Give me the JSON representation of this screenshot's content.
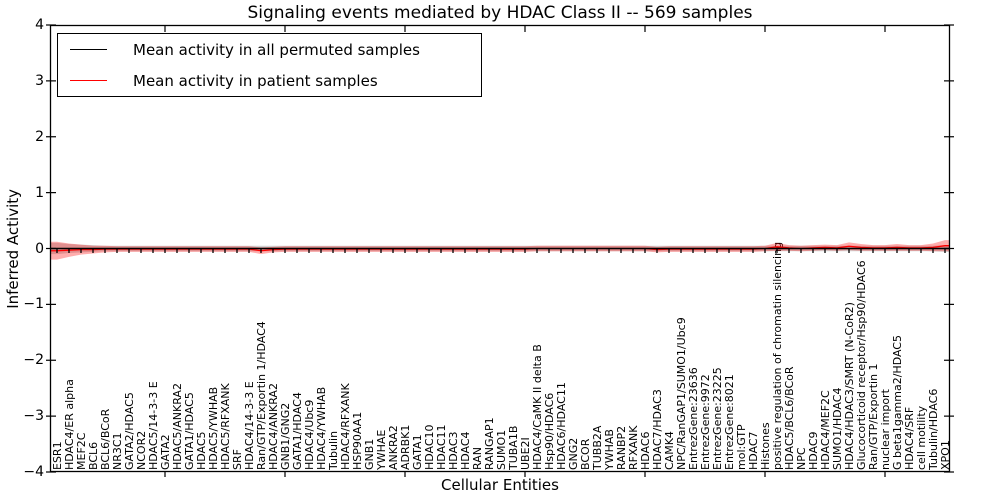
{
  "chart_data": {
    "type": "line",
    "title": "Signaling events mediated by HDAC Class II -- 569 samples",
    "xlabel": "Cellular Entities",
    "ylabel": "Inferred Activity",
    "ylim": [
      -4,
      4
    ],
    "yticks": [
      4,
      3,
      2,
      1,
      0,
      -1,
      -2,
      -3,
      -4
    ],
    "ytick_labels": [
      "4",
      "3",
      "2",
      "1",
      "0",
      "−1",
      "−2",
      "−3",
      "−4"
    ],
    "grid": false,
    "legend_position": "upper left",
    "colors": {
      "permuted": "#000000",
      "patient": "#ff0000",
      "patient_band": "#ff0000",
      "permuted_band": "#000000",
      "frame": "#000000",
      "background": "#ffffff"
    },
    "categories": [
      "ESR1",
      "HDAC4/ER alpha",
      "MEF2C",
      "BCL6",
      "BCL6/BCoR",
      "NR3C1",
      "GATA2/HDAC5",
      "NCOR2",
      "HDAC5/14-3-3 E",
      "GATA2",
      "HDAC5/ANKRA2",
      "GATA1/HDAC5",
      "HDAC5",
      "HDAC5/YWHAB",
      "HDAC5/RFXANK",
      "SRF",
      "HDAC4/14-3-3 E",
      "Ran/GTP/Exportin 1/HDAC4",
      "HDAC4/ANKRA2",
      "GNB1/GNG2",
      "GATA1/HDAC4",
      "HDAC4/Ubc9",
      "HDAC4/YWHAB",
      "Tubulin",
      "HDAC4/RFXANK",
      "HSP90AA1",
      "GNB1",
      "YWHAE",
      "ANKRA2",
      "ADRBK1",
      "GATA1",
      "HDAC10",
      "HDAC11",
      "HDAC3",
      "HDAC4",
      "RAN",
      "RANGAP1",
      "SUMO1",
      "TUBA1B",
      "UBE2I",
      "HDAC4/CaMK II delta B",
      "Hsp90/HDAC6",
      "HDAC6/HDAC11",
      "GNG2",
      "BCOR",
      "TUBB2A",
      "YWHAB",
      "RANBP2",
      "RFXANK",
      "HDAC6",
      "HDAC7/HDAC3",
      "CAMK4",
      "NPC/RanGAP1/SUMO1/Ubc9",
      "EntrezGene:23636",
      "EntrezGene:9972",
      "EntrezGene:23225",
      "EntrezGene:8021",
      "mol:GTP",
      "HDAC7",
      "Histones",
      "positive regulation of chromatin silencing",
      "HDAC5/BCL6/BCoR",
      "NPC",
      "HDAC9",
      "HDAC4/MEF2C",
      "SUMO1/HDAC4",
      "HDAC4/HDAC3/SMRT (N-CoR2)",
      "Glucocorticoid receptor/Hsp90/HDAC6",
      "Ran/GTP/Exportin 1",
      "nuclear import",
      "G beta1gamma2/HDAC5",
      "HDAC4/SRF",
      "cell motility",
      "Tubulin/HDAC6",
      "XPO1"
    ],
    "series": [
      {
        "name": "Mean activity in all permuted samples",
        "color": "#000000",
        "marker": "|",
        "values": [
          0,
          0,
          0,
          0,
          0,
          0,
          0,
          0,
          0,
          0,
          0,
          0,
          0,
          0,
          0,
          0,
          0,
          0,
          0,
          0,
          0,
          0,
          0,
          0,
          0,
          0,
          0,
          0,
          0,
          0,
          0,
          0,
          0,
          0,
          0,
          0,
          0,
          0,
          0,
          0,
          0,
          0,
          0,
          0,
          0,
          0,
          0,
          0,
          0,
          0,
          0,
          0,
          0,
          0,
          0,
          0,
          0,
          0,
          0,
          0,
          0,
          0,
          0,
          0,
          0,
          0,
          0,
          0,
          0,
          0,
          0,
          0,
          0,
          0,
          0
        ],
        "std": [
          0.1,
          0.08,
          0.07,
          0.06,
          0.05,
          0.05,
          0.05,
          0.05,
          0.05,
          0.05,
          0.05,
          0.05,
          0.05,
          0.05,
          0.05,
          0.05,
          0.05,
          0.05,
          0.05,
          0.05,
          0.05,
          0.05,
          0.05,
          0.05,
          0.05,
          0.05,
          0.05,
          0.05,
          0.05,
          0.05,
          0.05,
          0.05,
          0.05,
          0.05,
          0.05,
          0.05,
          0.05,
          0.05,
          0.05,
          0.05,
          0.05,
          0.05,
          0.05,
          0.05,
          0.05,
          0.05,
          0.05,
          0.05,
          0.05,
          0.05,
          0.05,
          0.05,
          0.05,
          0.05,
          0.05,
          0.05,
          0.05,
          0.05,
          0.05,
          0.05,
          0.05,
          0.05,
          0.05,
          0.05,
          0.05,
          0.05,
          0.05,
          0.05,
          0.05,
          0.05,
          0.05,
          0.05,
          0.05,
          0.05,
          0.06
        ]
      },
      {
        "name": "Mean activity in patient samples",
        "color": "#ff0000",
        "marker": "none",
        "values": [
          -0.04,
          -0.03,
          -0.02,
          -0.02,
          -0.01,
          -0.01,
          -0.01,
          -0.01,
          -0.01,
          -0.01,
          -0.01,
          -0.01,
          -0.01,
          -0.01,
          -0.01,
          -0.01,
          -0.01,
          -0.04,
          -0.02,
          -0.01,
          -0.01,
          -0.01,
          -0.01,
          -0.01,
          -0.01,
          -0.01,
          -0.01,
          -0.01,
          -0.01,
          -0.01,
          -0.01,
          -0.01,
          -0.01,
          -0.01,
          -0.01,
          -0.01,
          -0.01,
          -0.01,
          -0.01,
          -0.01,
          0,
          0,
          0,
          0,
          0,
          0,
          0,
          0,
          0,
          0,
          -0.02,
          -0.01,
          -0.01,
          -0.01,
          -0.01,
          -0.01,
          -0.01,
          -0.01,
          -0.01,
          0,
          0.03,
          0.01,
          0,
          0.01,
          0.02,
          0.01,
          0.04,
          0.02,
          0.01,
          0.01,
          0.02,
          0.01,
          0.01,
          0.02,
          0.05
        ],
        "std": [
          0.16,
          0.12,
          0.09,
          0.07,
          0.06,
          0.05,
          0.05,
          0.05,
          0.05,
          0.05,
          0.05,
          0.05,
          0.05,
          0.05,
          0.05,
          0.05,
          0.05,
          0.06,
          0.05,
          0.05,
          0.05,
          0.05,
          0.05,
          0.05,
          0.05,
          0.05,
          0.05,
          0.05,
          0.05,
          0.05,
          0.05,
          0.05,
          0.05,
          0.05,
          0.05,
          0.05,
          0.05,
          0.05,
          0.05,
          0.05,
          0.05,
          0.05,
          0.05,
          0.05,
          0.05,
          0.05,
          0.05,
          0.05,
          0.05,
          0.05,
          0.05,
          0.05,
          0.05,
          0.05,
          0.05,
          0.05,
          0.05,
          0.05,
          0.05,
          0.05,
          0.07,
          0.05,
          0.05,
          0.05,
          0.05,
          0.05,
          0.07,
          0.06,
          0.05,
          0.05,
          0.06,
          0.05,
          0.05,
          0.07,
          0.1
        ]
      }
    ]
  }
}
